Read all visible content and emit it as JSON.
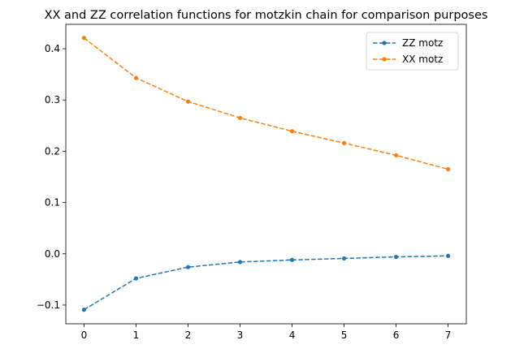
{
  "chart_data": {
    "type": "line",
    "title": "XX and ZZ correlation functions for motzkin chain for comparison purposes",
    "xlabel": "",
    "ylabel": "",
    "x": [
      0,
      1,
      2,
      3,
      4,
      5,
      6,
      7
    ],
    "xlim": [
      -0.35,
      7.35
    ],
    "ylim": [
      -0.1365,
      0.4475
    ],
    "xticks": [
      0,
      1,
      2,
      3,
      4,
      5,
      6,
      7
    ],
    "xtick_labels": [
      "0",
      "1",
      "2",
      "3",
      "4",
      "5",
      "6",
      "7"
    ],
    "yticks": [
      -0.1,
      0.0,
      0.1,
      0.2,
      0.3,
      0.4
    ],
    "ytick_labels": [
      "−0.1",
      "0.0",
      "0.1",
      "0.2",
      "0.3",
      "0.4"
    ],
    "grid": false,
    "legend_position": "top-right",
    "series": [
      {
        "name": "ZZ motz",
        "color": "#1f77b4",
        "linestyle": "dashed",
        "marker": "dot",
        "values": [
          -0.109,
          -0.048,
          -0.026,
          -0.016,
          -0.012,
          -0.009,
          -0.006,
          -0.004
        ]
      },
      {
        "name": "XX motz",
        "color": "#ff7f0e",
        "linestyle": "dashed",
        "marker": "dot",
        "values": [
          0.421,
          0.343,
          0.297,
          0.265,
          0.239,
          0.216,
          0.192,
          0.165
        ]
      }
    ]
  }
}
